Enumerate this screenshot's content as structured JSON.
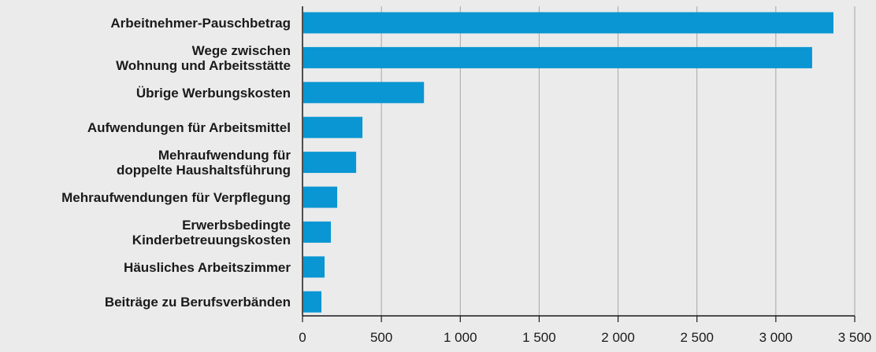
{
  "chart_data": {
    "type": "bar",
    "orientation": "horizontal",
    "title": "",
    "xlabel": "",
    "ylabel": "",
    "categories": [
      [
        "Arbeitnehmer-Pauschbetrag"
      ],
      [
        "Wege zwischen",
        "Wohnung und Arbeitsstätte"
      ],
      [
        "Übrige Werbungskosten"
      ],
      [
        "Aufwendungen für Arbeitsmittel"
      ],
      [
        "Mehraufwendung für",
        "doppelte Haushaltsführung"
      ],
      [
        "Mehraufwendungen für Verpflegung"
      ],
      [
        "Erwerbsbedingte",
        "Kinderbetreuungskosten"
      ],
      [
        "Häusliches Arbeitszimmer"
      ],
      [
        "Beiträge zu Berufsverbänden"
      ]
    ],
    "values": [
      3365,
      3230,
      770,
      380,
      340,
      220,
      180,
      140,
      120
    ],
    "xlim": [
      0,
      3500
    ],
    "xticks": [
      0,
      500,
      1000,
      1500,
      2000,
      2500,
      3000,
      3500
    ],
    "xtick_labels": [
      "0",
      "500",
      "1 000",
      "1 500",
      "2 000",
      "2 500",
      "3 000",
      "3 500"
    ],
    "grid": true,
    "legend": "none",
    "colors": {
      "bar": "#0a96d2",
      "background": "#ebebeb",
      "grid": "#a6a6a6",
      "axis": "#1a1a1a",
      "text": "#1a1a1a"
    }
  }
}
